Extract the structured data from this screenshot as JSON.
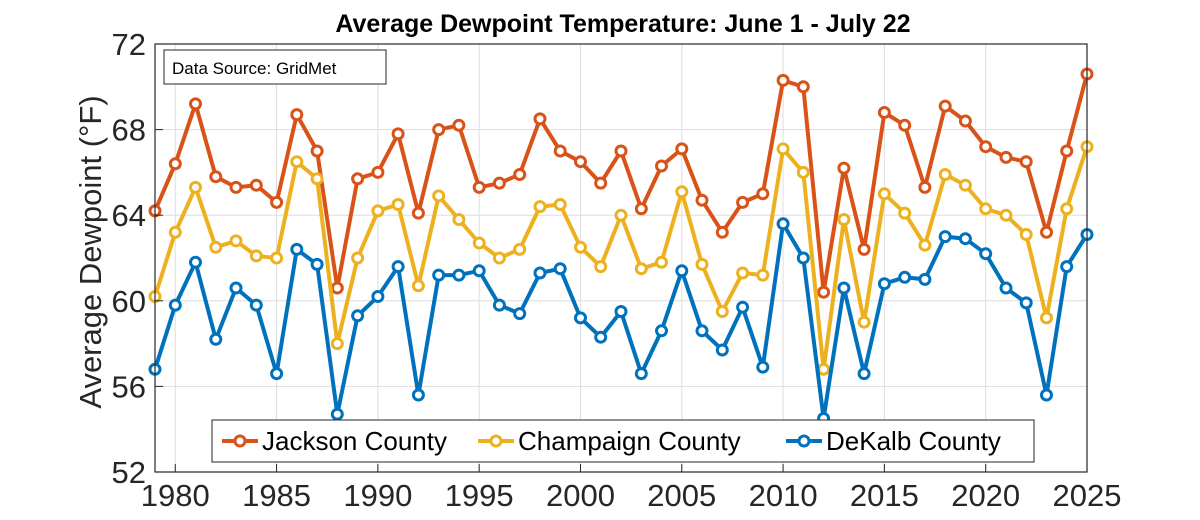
{
  "chart_data": {
    "type": "line",
    "title": "Average Dewpoint Temperature: June 1 - July 22",
    "ylabel": "Average Dewpoint (°F)",
    "xlabel": "",
    "annotation": "Data Source: GridMet",
    "xlim": [
      1979,
      2025
    ],
    "ylim": [
      52,
      72
    ],
    "xticks": [
      1980,
      1985,
      1990,
      1995,
      2000,
      2005,
      2010,
      2015,
      2020,
      2025
    ],
    "yticks": [
      52,
      56,
      60,
      64,
      68,
      72
    ],
    "grid": true,
    "legend_position": "bottom",
    "x": [
      1979,
      1980,
      1981,
      1982,
      1983,
      1984,
      1985,
      1986,
      1987,
      1988,
      1989,
      1990,
      1991,
      1992,
      1993,
      1994,
      1995,
      1996,
      1997,
      1998,
      1999,
      2000,
      2001,
      2002,
      2003,
      2004,
      2005,
      2006,
      2007,
      2008,
      2009,
      2010,
      2011,
      2012,
      2013,
      2014,
      2015,
      2016,
      2017,
      2018,
      2019,
      2020,
      2021,
      2022,
      2023,
      2024,
      2025
    ],
    "series": [
      {
        "name": "Jackson County",
        "color": "#D95319",
        "values": [
          64.2,
          66.4,
          69.2,
          65.8,
          65.3,
          65.4,
          64.6,
          68.7,
          67.0,
          60.6,
          65.7,
          66.0,
          67.8,
          64.1,
          68.0,
          68.2,
          65.3,
          65.5,
          65.9,
          68.5,
          67.0,
          66.5,
          65.5,
          67.0,
          64.3,
          66.3,
          67.1,
          64.7,
          63.2,
          64.6,
          65.0,
          70.3,
          70.0,
          60.4,
          66.2,
          62.4,
          68.8,
          68.2,
          65.3,
          69.1,
          68.4,
          67.2,
          66.7,
          66.5,
          63.2,
          67.0,
          70.6
        ]
      },
      {
        "name": "Champaign County",
        "color": "#EDB120",
        "values": [
          60.2,
          63.2,
          65.3,
          62.5,
          62.8,
          62.1,
          62.0,
          66.5,
          65.7,
          58.0,
          62.0,
          64.2,
          64.5,
          60.7,
          64.9,
          63.8,
          62.7,
          62.0,
          62.4,
          64.4,
          64.5,
          62.5,
          61.6,
          64.0,
          61.5,
          61.8,
          65.1,
          61.7,
          59.5,
          61.3,
          61.2,
          67.1,
          66.0,
          56.8,
          63.8,
          59.0,
          65.0,
          64.1,
          62.6,
          65.9,
          65.4,
          64.3,
          64.0,
          63.1,
          59.2,
          64.3,
          67.2
        ]
      },
      {
        "name": "DeKalb County",
        "color": "#0072BD",
        "values": [
          56.8,
          59.8,
          61.8,
          58.2,
          60.6,
          59.8,
          56.6,
          62.4,
          61.7,
          54.7,
          59.3,
          60.2,
          61.6,
          55.6,
          61.2,
          61.2,
          61.4,
          59.8,
          59.4,
          61.3,
          61.5,
          59.2,
          58.3,
          59.5,
          56.6,
          58.6,
          61.4,
          58.6,
          57.7,
          59.7,
          56.9,
          63.6,
          62.0,
          54.5,
          60.6,
          56.6,
          60.8,
          61.1,
          61.0,
          63.0,
          62.9,
          62.2,
          60.6,
          59.9,
          55.6,
          61.6,
          63.1
        ]
      }
    ]
  }
}
